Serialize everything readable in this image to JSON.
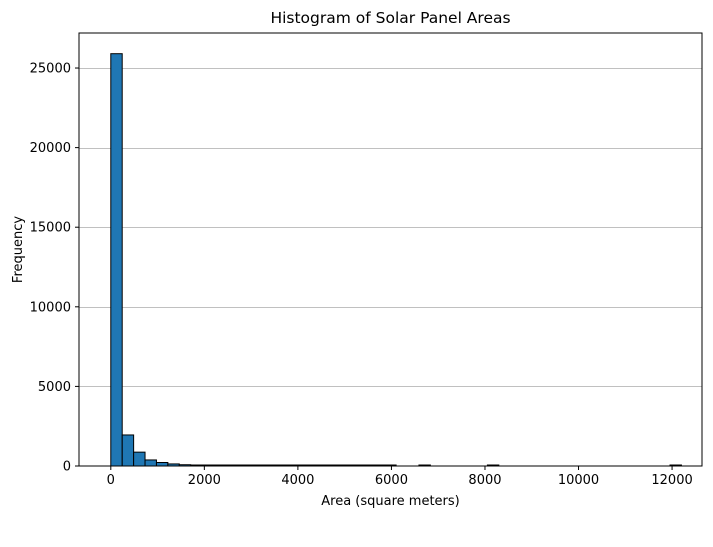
{
  "chart_data": {
    "type": "bar",
    "title": "Histogram of Solar Panel Areas",
    "xlabel": "Area (square meters)",
    "ylabel": "Frequency",
    "xlim": [
      -680,
      12640
    ],
    "ylim": [
      0,
      27200
    ],
    "x_ticks": [
      0,
      2000,
      4000,
      6000,
      8000,
      10000,
      12000
    ],
    "y_ticks": [
      0,
      5000,
      10000,
      15000,
      20000,
      25000
    ],
    "grid": "y-major",
    "bins": {
      "start": 0,
      "width": 244,
      "counts": [
        25900,
        1950,
        870,
        380,
        220,
        130,
        80,
        50,
        35,
        25,
        15,
        10,
        7,
        5,
        4,
        3,
        3,
        2,
        2,
        1,
        1,
        1,
        1,
        1,
        1,
        0,
        0,
        1,
        0,
        0,
        0,
        0,
        0,
        1,
        0,
        0,
        0,
        0,
        0,
        0,
        0,
        0,
        0,
        0,
        0,
        0,
        0,
        0,
        0,
        1
      ]
    },
    "colors": {
      "bar_fill": "#1f77b4",
      "bar_edge": "#000000",
      "grid": "#c0c0c0"
    }
  }
}
